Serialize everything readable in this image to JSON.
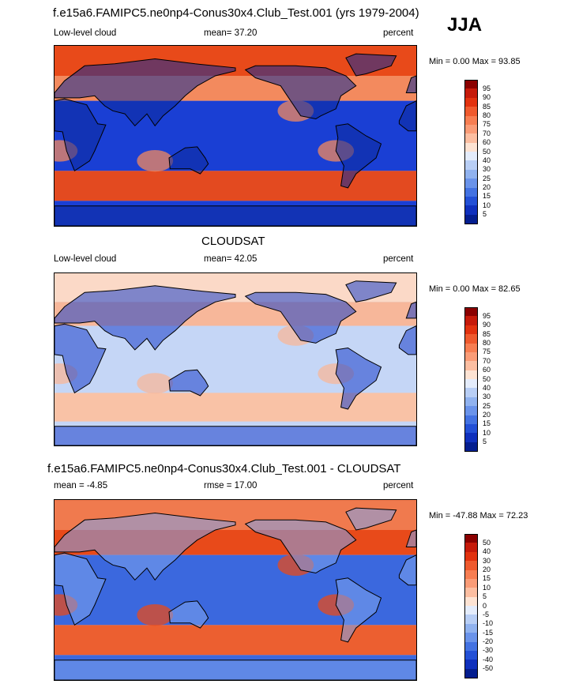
{
  "season": "JJA",
  "panels": [
    {
      "id": "model",
      "title": "f.e15a6.FAMIPC5.ne0np4-Conus30x4.Club_Test.001 (yrs 1979-2004)",
      "left_label": "Low-level cloud",
      "center_label": "mean=  37.20",
      "right_label": "percent",
      "minmax": "Min =    0.00 Max =  93.85",
      "colorbar": {
        "labels": [
          "95",
          "90",
          "85",
          "80",
          "75",
          "70",
          "60",
          "50",
          "40",
          "30",
          "25",
          "20",
          "15",
          "10",
          "5"
        ],
        "colors": [
          "#8b0000",
          "#c61a0a",
          "#e2320f",
          "#ef5a2e",
          "#f77e52",
          "#fa9c77",
          "#fcbea1",
          "#fde3d3",
          "#e4ecfb",
          "#b8cef5",
          "#90b2ef",
          "#6a93ea",
          "#4372e2",
          "#2350d6",
          "#0f30bd",
          "#041e8f"
        ]
      },
      "field": {
        "polar_north": "#e84a1a",
        "tropics": "#1a3fd4",
        "south_belt": "#e34a20",
        "north_ocean": "#f38a5e",
        "land": "#0c2a9a"
      }
    },
    {
      "id": "obs",
      "title": "CLOUDSAT",
      "left_label": "Low-level cloud",
      "center_label": "mean=  42.05",
      "right_label": "percent",
      "minmax": "Min =   0.00 Max =  82.65",
      "colorbar": {
        "labels": [
          "95",
          "90",
          "85",
          "80",
          "75",
          "70",
          "60",
          "50",
          "40",
          "30",
          "25",
          "20",
          "15",
          "10",
          "5"
        ],
        "colors": [
          "#8b0000",
          "#c61a0a",
          "#e2320f",
          "#ef5a2e",
          "#f77e52",
          "#fa9c77",
          "#fcbea1",
          "#fde3d3",
          "#e4ecfb",
          "#b8cef5",
          "#90b2ef",
          "#6a93ea",
          "#4372e2",
          "#2350d6",
          "#0f30bd",
          "#041e8f"
        ]
      },
      "field": {
        "polar_north": "#fbd9c7",
        "tropics": "#c5d6f6",
        "south_belt": "#f9c2a6",
        "north_ocean": "#f7b79a",
        "land": "#1a3fcb"
      }
    },
    {
      "id": "diff",
      "title": "f.e15a6.FAMIPC5.ne0np4-Conus30x4.Club_Test.001 - CLOUDSAT",
      "left_label": "mean =  -4.85",
      "center_label": "rmse =  17.00",
      "right_label": "percent",
      "minmax": "Min = -47.88 Max =  72.23",
      "colorbar": {
        "labels": [
          "50",
          "40",
          "30",
          "20",
          "15",
          "10",
          "5",
          "0",
          "-5",
          "-10",
          "-15",
          "-20",
          "-30",
          "-40",
          "-50"
        ],
        "colors": [
          "#8b0000",
          "#c61a0a",
          "#e2320f",
          "#ef5a2e",
          "#f77e52",
          "#fa9c77",
          "#fcbea1",
          "#fde3d3",
          "#e4ecfb",
          "#b8cef5",
          "#90b2ef",
          "#6a93ea",
          "#4372e2",
          "#2350d6",
          "#0f30bd",
          "#041e8f"
        ]
      },
      "field": {
        "polar_north": "#f07a4e",
        "tropics": "#3b68de",
        "south_belt": "#ec5f30",
        "north_ocean": "#e84a1a",
        "land": "#7da3ec"
      }
    }
  ]
}
